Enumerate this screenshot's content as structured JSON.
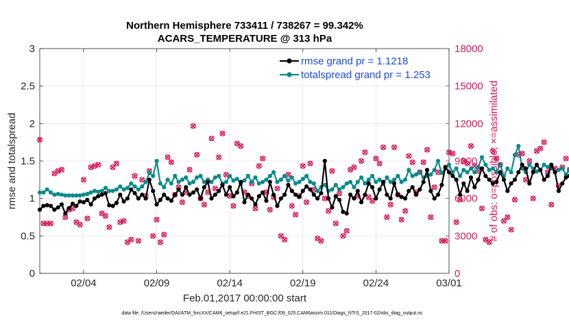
{
  "chart_data": {
    "type": "line",
    "title": "Northern Hemisphere 733411 / 738267 = 99.342%",
    "subtitle": "ACARS_TEMPERATURE @ 313 hPa",
    "xlabel": "Feb.01,2017 00:00:00 start",
    "ylabel": "rmse and totalspread",
    "y2label": "# of obs: o=possible; ×=assimilated",
    "footer": "data file: /Users/raeder/DAI/ATM_forcXX/CAM6_setup/f.e21.FHIST_BGC.f09_025.CAM6assim.011/Diags_NTrS_2017-02/obs_diag_output.nc",
    "x_ticks": [
      "02/04",
      "02/09",
      "02/14",
      "02/19",
      "02/24",
      "03/01"
    ],
    "x_tick_days": [
      4,
      9,
      14,
      19,
      24,
      29
    ],
    "xlim": [
      1.0,
      29.0
    ],
    "ylim": [
      0,
      3
    ],
    "y_ticks": [
      "0",
      "0.5",
      "1",
      "1.5",
      "2",
      "2.5",
      "3"
    ],
    "y_tick_values": [
      0,
      0.5,
      1,
      1.5,
      2,
      2.5,
      3
    ],
    "y2lim": [
      0,
      18000
    ],
    "y2_ticks": [
      "0",
      "3000",
      "6000",
      "9000",
      "12000",
      "15000",
      "18000"
    ],
    "y2_tick_values": [
      0,
      3000,
      6000,
      9000,
      12000,
      15000,
      18000
    ],
    "grid": true,
    "legend_position": "top-right",
    "colors": {
      "rmse": "#000000",
      "spread": "#0a8a8a",
      "obs": "#d6195c",
      "legend_text": "#1b48e0"
    },
    "x_days_start": 1.0,
    "x_days_step": 0.25,
    "series": [
      {
        "name": "rmse grand pr = 1.1218",
        "values": [
          0.85,
          0.9,
          0.91,
          0.9,
          0.85,
          0.88,
          0.92,
          0.8,
          0.87,
          0.93,
          0.9,
          0.96,
          0.95,
          0.98,
          0.92,
          1.0,
          1.03,
          1.05,
          1.07,
          0.91,
          0.9,
          0.94,
          1.05,
          0.96,
          1.0,
          1.12,
          1.07,
          1.0,
          1.05,
          1.0,
          1.25,
          1.1,
          0.92,
          0.98,
          1.05,
          1.0,
          0.97,
          1.05,
          1.12,
          1.05,
          1.15,
          1.05,
          1.08,
          1.12,
          1.0,
          1.15,
          1.22,
          1.0,
          1.05,
          1.1,
          1.18,
          1.05,
          1.15,
          1.03,
          1.08,
          1.22,
          0.95,
          1.05,
          1.0,
          0.92,
          1.03,
          1.08,
          0.97,
          1.22,
          1.05,
          0.9,
          1.0,
          1.05,
          1.18,
          1.1,
          1.05,
          1.02,
          1.1,
          1.16,
          1.12,
          1.05,
          1.0,
          1.07,
          1.5,
          1.0,
          0.88,
          1.03,
          0.98,
          0.82,
          0.8,
          1.05,
          1.0,
          1.1,
          0.95,
          1.05,
          1.2,
          1.15,
          1.0,
          1.12,
          1.22,
          1.05,
          1.0,
          1.2,
          1.05,
          1.02,
          1.0,
          1.1,
          1.15,
          1.05,
          1.12,
          1.22,
          1.38,
          1.1,
          1.0,
          1.05,
          1.18,
          1.42,
          1.35,
          1.3,
          1.25,
          1.05,
          1.2,
          1.1,
          1.28,
          1.15,
          1.25,
          1.4,
          1.3,
          1.25,
          1.2,
          1.22,
          1.35,
          1.25,
          1.1,
          1.2,
          1.25,
          1.35,
          1.45,
          1.4,
          1.2,
          1.35,
          1.45,
          1.38,
          1.25,
          1.3,
          1.45,
          1.35,
          1.1,
          1.2,
          1.28,
          1.3,
          1.1,
          1.25,
          1.35,
          1.2,
          1.15,
          1.22,
          1.18,
          1.0,
          1.1,
          1.2,
          1.3,
          1.42,
          1.4,
          1.28,
          1.38,
          1.32,
          1.25,
          1.3,
          1.42,
          1.35,
          1.2,
          1.28,
          1.4,
          1.45,
          1.32,
          1.35,
          1.3,
          1.2,
          1.25,
          1.3,
          1.4,
          1.35,
          1.1,
          1.0,
          0.9,
          1.05,
          1.0,
          1.1,
          1.2,
          1.15,
          1.2,
          1.1,
          1.05,
          1.0,
          1.12,
          1.2,
          1.35,
          1.3,
          1.25,
          1.15,
          1.05,
          0.88,
          0.98,
          1.05,
          1.03
        ]
      },
      {
        "name": "totalspread grand pr = 1.253",
        "values": [
          1.08,
          1.08,
          1.12,
          1.08,
          1.05,
          1.06,
          1.05,
          1.04,
          1.04,
          1.04,
          1.04,
          1.04,
          1.05,
          1.06,
          1.08,
          1.1,
          1.09,
          1.1,
          1.14,
          1.1,
          1.1,
          1.12,
          1.16,
          1.12,
          1.14,
          1.2,
          1.16,
          1.12,
          1.16,
          1.22,
          1.34,
          1.3,
          1.5,
          1.2,
          1.15,
          1.25,
          1.2,
          1.3,
          1.22,
          1.25,
          1.28,
          1.2,
          1.22,
          1.28,
          1.3,
          1.22,
          1.25,
          1.22,
          1.28,
          1.3,
          1.2,
          1.22,
          1.3,
          1.24,
          1.26,
          1.2,
          1.24,
          1.3,
          1.22,
          1.28,
          1.2,
          1.22,
          1.25,
          1.3,
          1.35,
          1.22,
          1.25,
          1.3,
          1.24,
          1.28,
          1.2,
          1.22,
          1.26,
          1.3,
          1.22,
          1.2,
          1.1,
          1.15,
          1.18,
          1.1,
          1.12,
          1.18,
          1.12,
          1.15,
          1.2,
          1.22,
          1.15,
          1.22,
          1.28,
          1.2,
          1.25,
          1.3,
          1.22,
          1.25,
          1.2,
          1.28,
          1.22,
          1.25,
          1.3,
          1.22,
          1.25,
          1.38,
          1.3,
          1.32,
          1.35,
          1.28,
          1.3,
          1.32,
          1.38,
          1.5,
          1.34,
          1.4,
          1.45,
          1.35,
          1.4,
          1.3,
          1.38,
          1.35,
          1.4,
          1.35,
          1.42,
          1.55,
          1.45,
          1.38,
          1.4,
          1.35,
          1.45,
          1.3,
          1.4,
          1.35,
          1.58,
          1.7,
          1.4,
          1.35,
          1.45,
          1.4,
          1.36,
          1.38,
          1.45,
          1.42,
          1.4,
          1.35,
          1.38,
          1.4,
          1.32,
          1.38,
          1.42,
          1.35,
          1.3,
          1.36,
          1.25,
          1.2,
          1.25,
          1.22,
          1.24,
          1.28,
          1.25,
          1.2,
          1.3,
          1.24,
          1.26,
          1.3,
          1.22,
          1.26,
          1.28,
          1.32,
          1.3,
          1.25,
          1.3,
          1.35,
          1.28,
          1.32,
          1.28,
          1.25,
          1.3,
          1.28,
          1.32,
          1.35,
          1.3,
          1.2,
          1.1,
          1.12,
          1.2,
          1.25,
          1.3,
          1.28,
          1.22,
          1.24,
          1.2,
          1.28,
          1.3,
          1.35,
          1.3,
          1.22,
          1.2,
          1.15,
          1.18,
          1.2,
          1.25,
          1.32,
          1.3,
          1.34,
          1.37
        ]
      },
      {
        "name": "observations",
        "values": [
          10700,
          4000,
          4000,
          4000,
          8000,
          8200,
          8300,
          4500,
          5100,
          5200,
          4100,
          3900,
          7500,
          4400,
          8500,
          8600,
          8700,
          4800,
          4600,
          3700,
          8500,
          8800,
          4100,
          4200,
          2500,
          2700,
          7800,
          2600,
          7500,
          6200,
          8200,
          3000,
          4300,
          2500,
          3100,
          9300,
          8900,
          6300,
          6900,
          5700,
          6500,
          8300,
          11800,
          9500,
          6000,
          5500,
          6500,
          10800,
          6800,
          9300,
          11200,
          7900,
          6200,
          5400,
          10400,
          10200,
          6500,
          6200,
          7200,
          5200,
          8600,
          9200,
          6500,
          5100,
          6100,
          6800,
          3000,
          2700,
          7900,
          5400,
          4700,
          6200,
          8600,
          5700,
          8800,
          6700,
          2800,
          2600,
          6000,
          5000,
          8200,
          4000,
          6400,
          3000,
          3400,
          8300,
          8500,
          6200,
          9000,
          9700,
          6100,
          5800,
          9200,
          8800,
          10100,
          4500,
          5500,
          10100,
          6300,
          4300,
          5000,
          9400,
          8900,
          6500,
          8100,
          8900,
          9900,
          4500,
          6900,
          8100,
          2600,
          2600,
          9700,
          9600,
          4100,
          5900,
          9000,
          8800,
          10200,
          8600,
          8200,
          5200,
          2700,
          2500,
          9800,
          9200,
          8700,
          4200,
          4500,
          3500,
          5900,
          9500,
          9600,
          7500,
          9000,
          6000,
          9800,
          10000,
          10500,
          8100,
          5500,
          8400,
          7000,
          8500,
          9200,
          8300,
          4500,
          4300,
          5500,
          5800,
          4400,
          4500,
          4400,
          5700,
          6800,
          8500,
          8800,
          9400,
          9300,
          9100,
          5100,
          4700,
          6000,
          8700,
          9800,
          9500,
          9200,
          9500,
          9100,
          5800,
          4500,
          4400,
          2700,
          2800,
          6000,
          6200,
          7700,
          8700,
          9100,
          9400,
          9700,
          4000,
          3800,
          3500,
          8300,
          9500,
          9700,
          5500,
          4800,
          4800,
          5100,
          4800,
          10900,
          11100,
          8400,
          8600,
          0,
          0
        ]
      }
    ]
  }
}
